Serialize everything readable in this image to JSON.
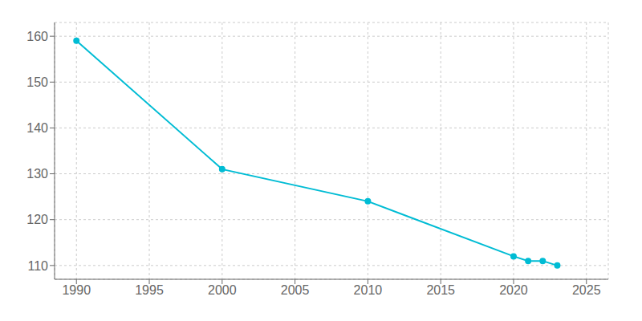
{
  "chart_data": {
    "type": "line",
    "x": [
      1990,
      2000,
      2010,
      2020,
      2021,
      2022,
      2023
    ],
    "values": [
      159,
      131,
      124,
      112,
      111,
      111,
      110
    ],
    "color": "#00bcd4",
    "marker": "circle",
    "xlim": [
      1988.5,
      2026.5
    ],
    "ylim": [
      107,
      163
    ],
    "xticks": [
      1990,
      1995,
      2000,
      2005,
      2010,
      2015,
      2020,
      2025
    ],
    "yticks": [
      110,
      120,
      130,
      140,
      150,
      160
    ],
    "grid": true
  }
}
